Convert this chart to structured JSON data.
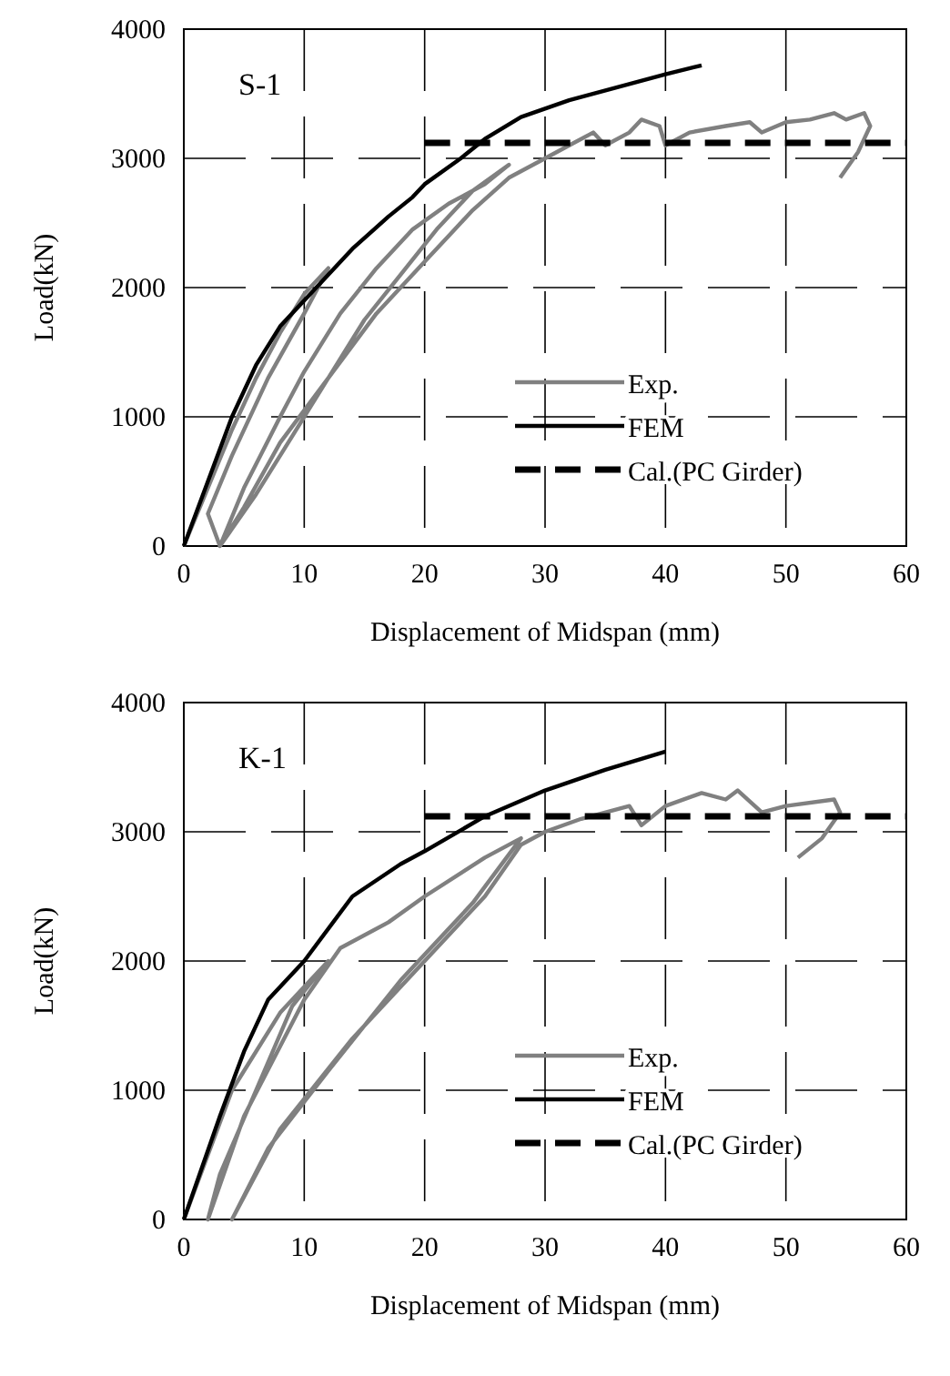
{
  "chart_data": [
    {
      "type": "line",
      "annotations": [
        "S-1"
      ],
      "xlabel": "Displacement of Midspan (mm)",
      "ylabel": "Load(kN)",
      "xlim": [
        0,
        60
      ],
      "ylim": [
        0,
        4000
      ],
      "xticks": [
        0,
        10,
        20,
        30,
        40,
        50,
        60
      ],
      "yticks": [
        0,
        1000,
        2000,
        3000,
        4000
      ],
      "grid": true,
      "legend": "bottom right",
      "series": [
        {
          "name": "Exp.",
          "color": "#808080",
          "line_style": "solid",
          "x": [
            0,
            2,
            4,
            6,
            8,
            10,
            12,
            10,
            7,
            4,
            2,
            3,
            5,
            8,
            10,
            13,
            16,
            19,
            22,
            25,
            27,
            24,
            21,
            18,
            15,
            12,
            9,
            6,
            3,
            5,
            8,
            12,
            16,
            20,
            24,
            27,
            30,
            32,
            34,
            35,
            37,
            38,
            39.5,
            40,
            42,
            45,
            47,
            48,
            50,
            52,
            54,
            55,
            56.5,
            57,
            56,
            54.5
          ],
          "values": [
            0,
            450,
            900,
            1300,
            1650,
            1950,
            2150,
            1800,
            1300,
            700,
            250,
            0,
            450,
            1000,
            1350,
            1800,
            2150,
            2450,
            2650,
            2800,
            2950,
            2750,
            2450,
            2100,
            1750,
            1300,
            850,
            400,
            0,
            300,
            800,
            1300,
            1800,
            2200,
            2600,
            2850,
            3000,
            3100,
            3200,
            3100,
            3200,
            3300,
            3250,
            3100,
            3200,
            3250,
            3280,
            3200,
            3280,
            3300,
            3350,
            3300,
            3350,
            3250,
            3050,
            2850
          ]
        },
        {
          "name": "FEM",
          "color": "#000000",
          "line_style": "solid",
          "x": [
            0,
            2,
            4,
            6,
            8,
            11,
            14,
            17,
            19,
            20,
            23,
            25,
            28,
            32,
            36,
            40,
            43
          ],
          "values": [
            0,
            500,
            1000,
            1400,
            1700,
            2000,
            2300,
            2550,
            2700,
            2800,
            3000,
            3150,
            3320,
            3450,
            3550,
            3650,
            3720
          ]
        },
        {
          "name": "Cal.(PC Girder)",
          "color": "#000000",
          "line_style": "dashed",
          "x": [
            20,
            60
          ],
          "values": [
            3120,
            3120
          ]
        }
      ]
    },
    {
      "type": "line",
      "annotations": [
        "K-1"
      ],
      "xlabel": "Displacement of Midspan (mm)",
      "ylabel": "Load(kN)",
      "xlim": [
        0,
        60
      ],
      "ylim": [
        0,
        4000
      ],
      "xticks": [
        0,
        10,
        20,
        30,
        40,
        50,
        60
      ],
      "yticks": [
        0,
        1000,
        2000,
        3000,
        4000
      ],
      "grid": true,
      "legend": "bottom right",
      "series": [
        {
          "name": "Exp.",
          "color": "#808080",
          "line_style": "solid",
          "x": [
            0,
            4,
            8,
            12,
            9,
            6,
            3,
            2,
            5,
            10,
            13,
            17,
            20,
            25,
            28,
            24,
            18,
            12,
            7,
            4,
            8,
            14,
            20,
            25,
            28,
            30,
            33,
            37,
            38,
            40,
            43,
            45,
            46,
            48,
            50,
            54,
            54.5,
            53,
            51
          ],
          "values": [
            0,
            1000,
            1600,
            2000,
            1650,
            1000,
            350,
            0,
            800,
            1700,
            2100,
            2300,
            2500,
            2800,
            2950,
            2450,
            1850,
            1150,
            550,
            0,
            700,
            1400,
            2000,
            2500,
            2900,
            3000,
            3100,
            3200,
            3050,
            3200,
            3300,
            3250,
            3320,
            3150,
            3200,
            3250,
            3150,
            2950,
            2800
          ]
        },
        {
          "name": "FEM",
          "color": "#000000",
          "line_style": "solid",
          "x": [
            0,
            3,
            5,
            7,
            10,
            14,
            18,
            20,
            25,
            30,
            35,
            40
          ],
          "values": [
            0,
            800,
            1300,
            1700,
            2000,
            2500,
            2750,
            2850,
            3120,
            3320,
            3480,
            3620
          ]
        },
        {
          "name": "Cal.(PC Girder)",
          "color": "#000000",
          "line_style": "dashed",
          "x": [
            20,
            60
          ],
          "values": [
            3120,
            3120
          ]
        }
      ]
    }
  ]
}
